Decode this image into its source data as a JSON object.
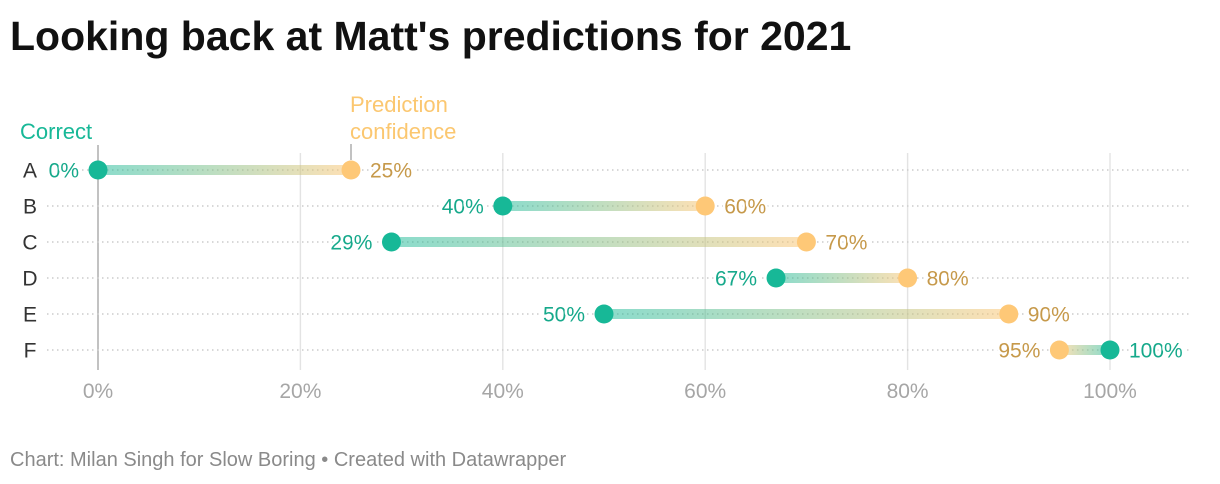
{
  "colors": {
    "correct": "#17b897",
    "correct_label": "#16a98b",
    "prediction": "#fec877",
    "prediction_label": "#c6994a",
    "prediction_legend": "#fbc770",
    "title": "#111111",
    "row_label": "#333333",
    "axis_label": "#a6a6a6",
    "gridline": "#e3e3e3",
    "baseline": "#a8a8a8",
    "row_guide": "#cccccc",
    "footer": "#8a8a8a"
  },
  "footer": {
    "source": "Chart: Milan Singh for Slow Boring",
    "separator": "•",
    "credit": "Created with Datawrapper"
  },
  "chart_data": {
    "type": "scatter",
    "title": "Looking back at Matt's predictions for 2021",
    "xlabel": "",
    "ylabel": "",
    "categories": [
      "A",
      "B",
      "C",
      "D",
      "E",
      "F"
    ],
    "series": [
      {
        "name": "Correct",
        "values": [
          0,
          40,
          29,
          67,
          50,
          100
        ]
      },
      {
        "name": "Prediction confidence",
        "values": [
          25,
          60,
          70,
          80,
          90,
          95
        ]
      }
    ],
    "x_ticks": [
      0,
      20,
      40,
      60,
      80,
      100
    ],
    "xlim": [
      0,
      100
    ],
    "unit": "%",
    "grid": "vertical",
    "legend": "top"
  }
}
